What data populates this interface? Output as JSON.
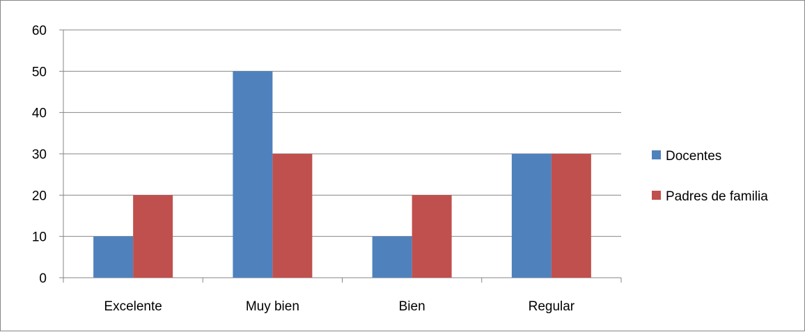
{
  "chart_data": {
    "type": "bar",
    "categories": [
      "Excelente",
      "Muy bien",
      "Bien",
      "Regular"
    ],
    "series": [
      {
        "name": "Docentes",
        "values": [
          10,
          50,
          10,
          30
        ],
        "color": "#4F81BD"
      },
      {
        "name": "Padres de familia",
        "values": [
          20,
          30,
          20,
          30
        ],
        "color": "#C0504D"
      }
    ],
    "ylim": [
      0,
      60
    ],
    "yticks": [
      0,
      10,
      20,
      30,
      40,
      50,
      60
    ],
    "grid": true,
    "legend_position": "right",
    "title": "",
    "xlabel": "",
    "ylabel": ""
  }
}
